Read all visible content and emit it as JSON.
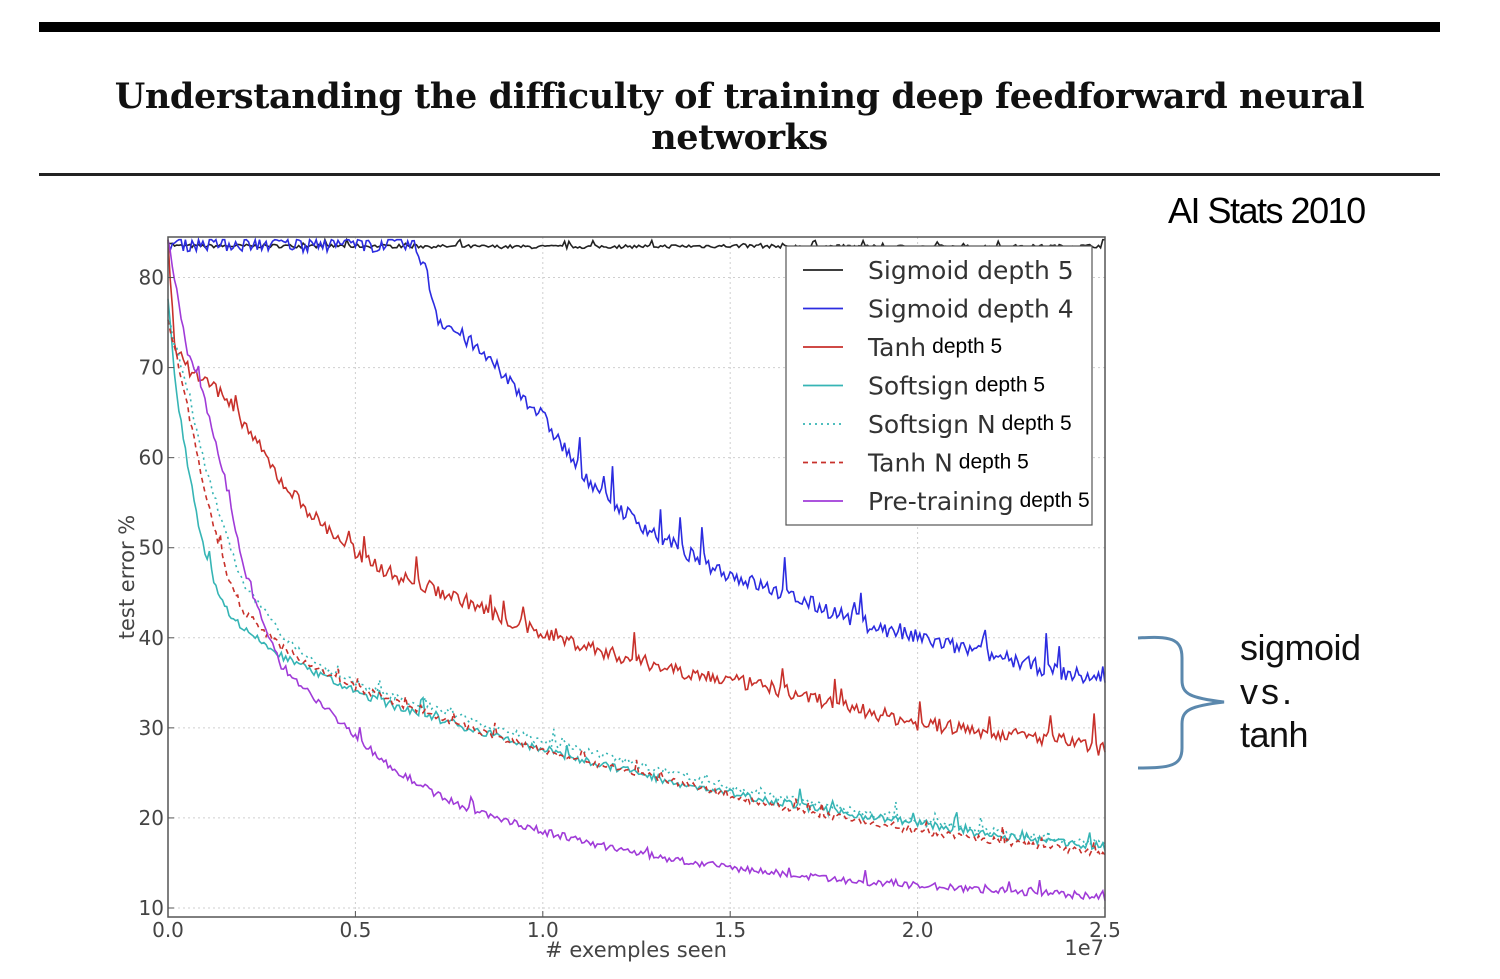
{
  "header": {
    "title": "Understanding the difficulty of training deep feedforward neural networks",
    "venue": "AI Stats 2010"
  },
  "annotation": {
    "line1": "sigmoid",
    "line2": "vs.",
    "line3": "tanh"
  },
  "chart_data": {
    "type": "line",
    "xlabel": "# exemples seen",
    "ylabel": "test error %",
    "x_scale_label": "1e7",
    "xlim": [
      0,
      2.5
    ],
    "ylim": [
      9,
      84.5
    ],
    "x_ticks": [
      0.0,
      0.5,
      1.0,
      1.5,
      2.0,
      2.5
    ],
    "x_tick_labels": [
      "0.0",
      "0.5",
      "1.0",
      "1.5",
      "2.0",
      "2.5"
    ],
    "y_ticks": [
      10,
      20,
      30,
      40,
      50,
      60,
      70,
      80
    ],
    "y_tick_labels": [
      "10",
      "20",
      "30",
      "40",
      "50",
      "60",
      "70",
      "80"
    ],
    "grid": true,
    "legend_position": "top-right",
    "series": [
      {
        "name": "Sigmoid depth 5",
        "label": "Sigmoid depth 5",
        "depth_label": "",
        "color": "#222222",
        "style": "solid",
        "x": [
          0.0,
          0.02,
          0.5,
          1.0,
          1.5,
          2.0,
          2.5
        ],
        "y": [
          84.0,
          83.5,
          83.5,
          83.4,
          83.5,
          83.4,
          83.5
        ]
      },
      {
        "name": "Sigmoid depth 4",
        "label": "Sigmoid depth 4",
        "depth_label": "",
        "color": "#2c2ce0",
        "style": "solid",
        "x": [
          0.0,
          0.5,
          0.65,
          0.68,
          0.72,
          0.8,
          0.9,
          1.0,
          1.1,
          1.2,
          1.3,
          1.4,
          1.5,
          1.6,
          1.7,
          1.8,
          1.9,
          2.0,
          2.1,
          2.2,
          2.3,
          2.4,
          2.5
        ],
        "y": [
          83.8,
          83.7,
          83.6,
          82.0,
          75.5,
          73.0,
          69.0,
          64.5,
          58.5,
          54.5,
          51.5,
          49.0,
          47.0,
          45.5,
          44.0,
          42.5,
          41.0,
          40.0,
          39.0,
          38.0,
          37.0,
          36.0,
          35.3
        ]
      },
      {
        "name": "Tanh depth 5",
        "label": "Tanh",
        "depth_label": "depth 5",
        "color": "#c8312b",
        "style": "solid",
        "x": [
          0.0,
          0.02,
          0.05,
          0.1,
          0.15,
          0.2,
          0.3,
          0.4,
          0.5,
          0.6,
          0.7,
          0.8,
          0.9,
          1.0,
          1.2,
          1.4,
          1.6,
          1.8,
          2.0,
          2.2,
          2.4,
          2.5
        ],
        "y": [
          84.0,
          72.0,
          70.0,
          68.5,
          67.0,
          64.0,
          57.5,
          53.0,
          49.5,
          47.0,
          45.5,
          44.0,
          42.0,
          40.5,
          38.0,
          36.0,
          34.5,
          32.5,
          30.5,
          29.5,
          28.5,
          27.5
        ]
      },
      {
        "name": "Softsign depth 5",
        "label": "Softsign",
        "depth_label": "depth 5",
        "color": "#36b5b5",
        "style": "solid",
        "x": [
          0.0,
          0.02,
          0.05,
          0.08,
          0.1,
          0.15,
          0.2,
          0.3,
          0.4,
          0.5,
          0.6,
          0.8,
          1.0,
          1.2,
          1.4,
          1.6,
          1.8,
          2.0,
          2.2,
          2.4,
          2.5
        ],
        "y": [
          78.0,
          68.0,
          60.0,
          53.0,
          49.0,
          43.5,
          41.0,
          38.0,
          36.0,
          34.0,
          32.5,
          30.0,
          27.5,
          25.5,
          23.5,
          22.0,
          20.5,
          19.5,
          18.0,
          17.2,
          16.8
        ]
      },
      {
        "name": "Softsign N depth 5",
        "label": "Softsign N",
        "depth_label": "depth 5",
        "color": "#36b5b5",
        "style": "dotted",
        "x": [
          0.0,
          0.03,
          0.06,
          0.1,
          0.15,
          0.2,
          0.3,
          0.4,
          0.5,
          0.6,
          0.8,
          1.0,
          1.2,
          1.4,
          1.6,
          1.8,
          2.0,
          2.2,
          2.4,
          2.5
        ],
        "y": [
          75.0,
          71.0,
          66.0,
          59.0,
          52.0,
          46.0,
          40.5,
          37.0,
          35.0,
          33.5,
          31.0,
          28.5,
          26.5,
          24.5,
          22.5,
          21.0,
          19.5,
          18.5,
          17.5,
          17.0
        ]
      },
      {
        "name": "Tanh N depth 5",
        "label": "Tanh N",
        "depth_label": "depth 5",
        "color": "#c8312b",
        "style": "dashed",
        "x": [
          0.0,
          0.03,
          0.06,
          0.1,
          0.15,
          0.2,
          0.3,
          0.4,
          0.5,
          0.6,
          0.8,
          1.0,
          1.2,
          1.4,
          1.6,
          1.8,
          2.0,
          2.2,
          2.4,
          2.5
        ],
        "y": [
          75.0,
          70.0,
          64.0,
          56.0,
          48.0,
          43.0,
          39.0,
          36.5,
          34.5,
          33.0,
          30.0,
          27.5,
          25.5,
          23.5,
          21.5,
          20.0,
          18.5,
          17.5,
          16.5,
          16.0
        ]
      },
      {
        "name": "Pre-training depth 5",
        "label": "Pre-training",
        "depth_label": "depth 5",
        "color": "#a03bd8",
        "style": "solid",
        "x": [
          0.0,
          0.05,
          0.08,
          0.1,
          0.15,
          0.2,
          0.25,
          0.3,
          0.4,
          0.5,
          0.6,
          0.7,
          0.8,
          1.0,
          1.2,
          1.4,
          1.6,
          1.8,
          2.0,
          2.2,
          2.4,
          2.5
        ],
        "y": [
          84.0,
          72.0,
          69.0,
          66.0,
          58.0,
          48.0,
          42.0,
          37.0,
          33.0,
          29.0,
          25.5,
          23.0,
          21.0,
          18.5,
          16.5,
          15.0,
          14.0,
          13.0,
          12.5,
          12.0,
          11.5,
          11.2
        ]
      }
    ]
  }
}
